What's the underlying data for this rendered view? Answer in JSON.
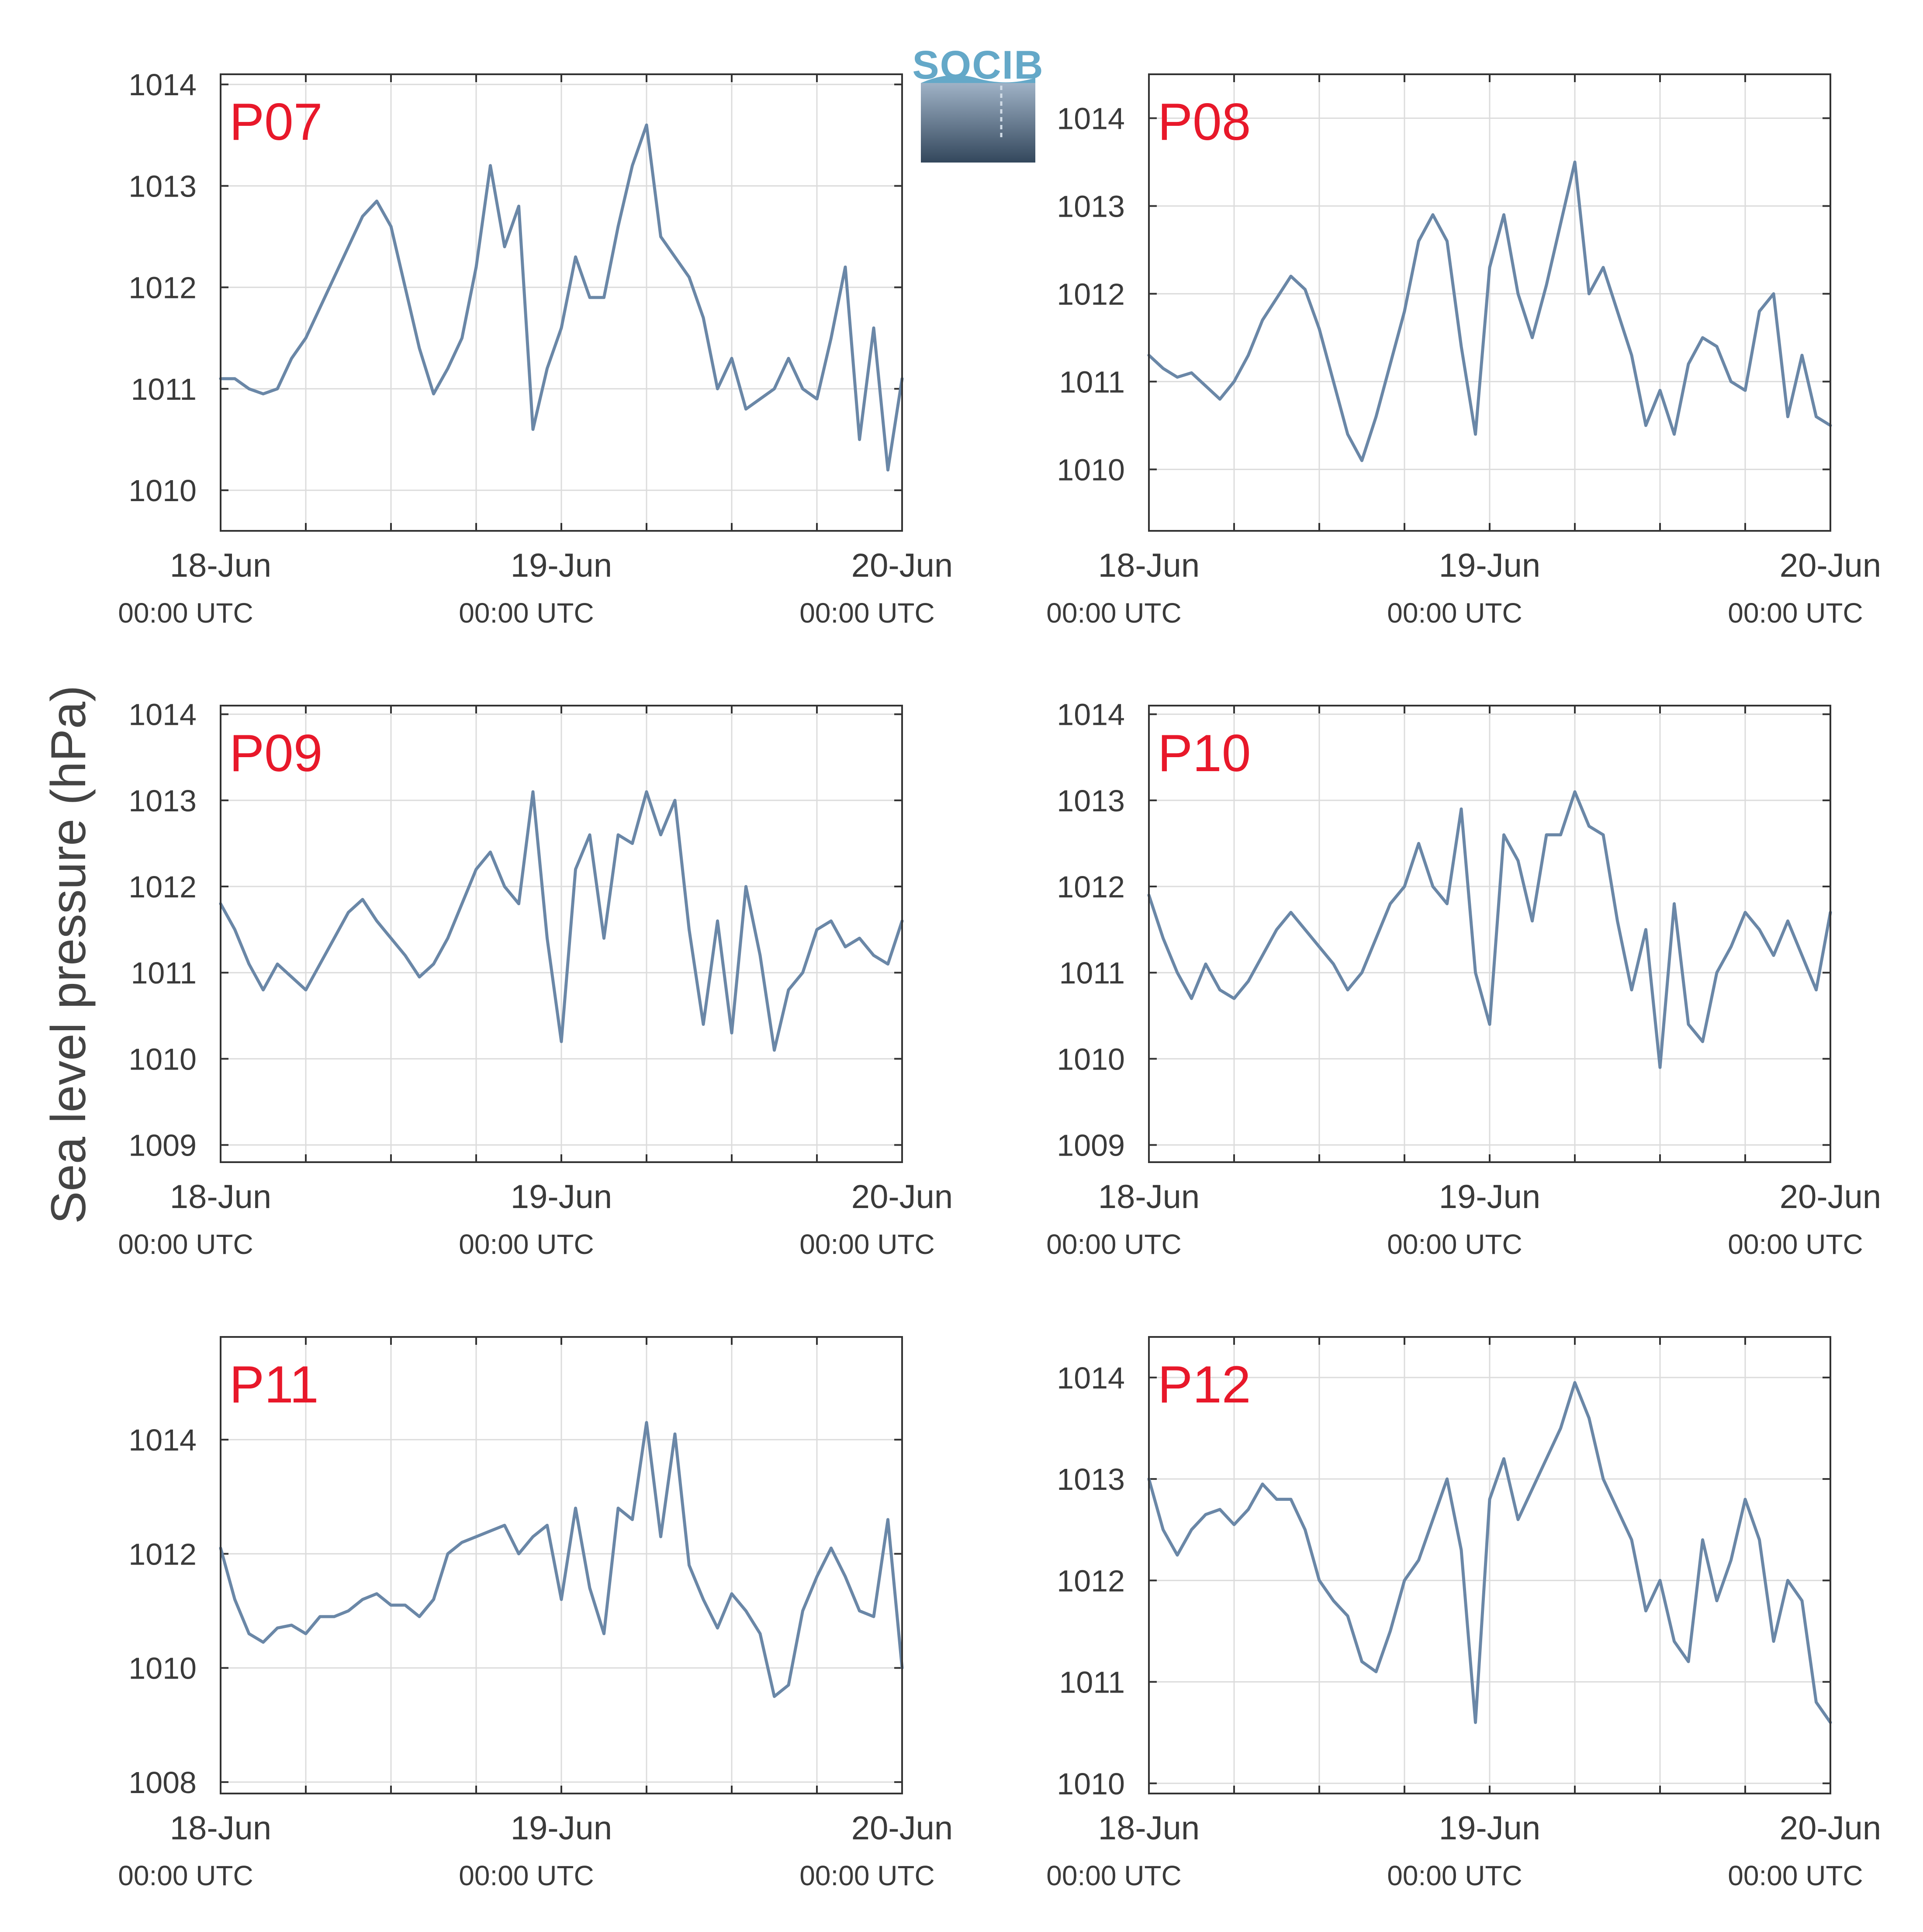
{
  "ylabel": "Sea level pressure (hPa)",
  "logo": {
    "text": "SOCIB"
  },
  "colors": {
    "line": "#6a87a7",
    "label": "#e8182a",
    "grid": "#dcdcdc",
    "axis": "#333333"
  },
  "x_ticks": [
    {
      "date": "18-Jun",
      "time": "00:00 UTC"
    },
    {
      "date": "19-Jun",
      "time": "00:00 UTC"
    },
    {
      "date": "20-Jun",
      "time": "00:00 UTC"
    }
  ],
  "chart_data": [
    {
      "type": "line",
      "panel": "P07",
      "xlim": [
        0,
        48
      ],
      "ylim": [
        1009.6,
        1014.1
      ],
      "yticks": [
        1010,
        1011,
        1012,
        1013,
        1014
      ],
      "x": [
        0,
        1,
        2,
        3,
        4,
        5,
        6,
        7,
        8,
        9,
        10,
        11,
        12,
        13,
        14,
        15,
        16,
        17,
        18,
        19,
        20,
        21,
        22,
        23,
        24,
        25,
        26,
        27,
        28,
        29,
        30,
        31,
        32,
        33,
        34,
        35,
        36,
        37,
        38,
        39,
        40,
        41,
        42,
        43,
        44,
        45,
        46,
        47,
        48
      ],
      "y": [
        1011.1,
        1011.1,
        1011.0,
        1010.95,
        1011.0,
        1011.3,
        1011.5,
        1011.8,
        1012.1,
        1012.4,
        1012.7,
        1012.85,
        1012.6,
        1012.0,
        1011.4,
        1010.95,
        1011.2,
        1011.5,
        1012.2,
        1013.2,
        1012.4,
        1012.8,
        1010.6,
        1011.2,
        1011.6,
        1012.3,
        1011.9,
        1011.9,
        1012.6,
        1013.2,
        1013.6,
        1012.5,
        1012.3,
        1012.1,
        1011.7,
        1011.0,
        1011.3,
        1010.8,
        1010.9,
        1011.0,
        1011.3,
        1011.0,
        1010.9,
        1011.5,
        1012.2,
        1010.5,
        1011.6,
        1010.2,
        1011.1
      ]
    },
    {
      "type": "line",
      "panel": "P08",
      "xlim": [
        0,
        48
      ],
      "ylim": [
        1009.3,
        1014.5
      ],
      "yticks": [
        1010,
        1011,
        1012,
        1013,
        1014
      ],
      "x": [
        0,
        1,
        2,
        3,
        4,
        5,
        6,
        7,
        8,
        9,
        10,
        11,
        12,
        13,
        14,
        15,
        16,
        17,
        18,
        19,
        20,
        21,
        22,
        23,
        24,
        25,
        26,
        27,
        28,
        29,
        30,
        31,
        32,
        33,
        34,
        35,
        36,
        37,
        38,
        39,
        40,
        41,
        42,
        43,
        44,
        45,
        46,
        47,
        48
      ],
      "y": [
        1011.3,
        1011.15,
        1011.05,
        1011.1,
        1010.95,
        1010.8,
        1011.0,
        1011.3,
        1011.7,
        1011.95,
        1012.2,
        1012.05,
        1011.6,
        1011.0,
        1010.4,
        1010.1,
        1010.6,
        1011.2,
        1011.8,
        1012.6,
        1012.9,
        1012.6,
        1011.4,
        1010.4,
        1012.3,
        1012.9,
        1012.0,
        1011.5,
        1012.1,
        1012.8,
        1013.5,
        1012.0,
        1012.3,
        1011.8,
        1011.3,
        1010.5,
        1010.9,
        1010.4,
        1011.2,
        1011.5,
        1011.4,
        1011.0,
        1010.9,
        1011.8,
        1012.0,
        1010.6,
        1011.3,
        1010.6,
        1010.5
      ]
    },
    {
      "type": "line",
      "panel": "P09",
      "xlim": [
        0,
        48
      ],
      "ylim": [
        1008.8,
        1014.1
      ],
      "yticks": [
        1009,
        1010,
        1011,
        1012,
        1013,
        1014
      ],
      "x": [
        0,
        1,
        2,
        3,
        4,
        5,
        6,
        7,
        8,
        9,
        10,
        11,
        12,
        13,
        14,
        15,
        16,
        17,
        18,
        19,
        20,
        21,
        22,
        23,
        24,
        25,
        26,
        27,
        28,
        29,
        30,
        31,
        32,
        33,
        34,
        35,
        36,
        37,
        38,
        39,
        40,
        41,
        42,
        43,
        44,
        45,
        46,
        47,
        48
      ],
      "y": [
        1011.8,
        1011.5,
        1011.1,
        1010.8,
        1011.1,
        1010.95,
        1010.8,
        1011.1,
        1011.4,
        1011.7,
        1011.85,
        1011.6,
        1011.4,
        1011.2,
        1010.95,
        1011.1,
        1011.4,
        1011.8,
        1012.2,
        1012.4,
        1012.0,
        1011.8,
        1013.1,
        1011.4,
        1010.2,
        1012.2,
        1012.6,
        1011.4,
        1012.6,
        1012.5,
        1013.1,
        1012.6,
        1013.0,
        1011.5,
        1010.4,
        1011.6,
        1010.3,
        1012.0,
        1011.2,
        1010.1,
        1010.8,
        1011.0,
        1011.5,
        1011.6,
        1011.3,
        1011.4,
        1011.2,
        1011.1,
        1011.6
      ]
    },
    {
      "type": "line",
      "panel": "P10",
      "xlim": [
        0,
        48
      ],
      "ylim": [
        1008.8,
        1014.1
      ],
      "yticks": [
        1009,
        1010,
        1011,
        1012,
        1013,
        1014
      ],
      "x": [
        0,
        1,
        2,
        3,
        4,
        5,
        6,
        7,
        8,
        9,
        10,
        11,
        12,
        13,
        14,
        15,
        16,
        17,
        18,
        19,
        20,
        21,
        22,
        23,
        24,
        25,
        26,
        27,
        28,
        29,
        30,
        31,
        32,
        33,
        34,
        35,
        36,
        37,
        38,
        39,
        40,
        41,
        42,
        43,
        44,
        45,
        46,
        47,
        48
      ],
      "y": [
        1011.9,
        1011.4,
        1011.0,
        1010.7,
        1011.1,
        1010.8,
        1010.7,
        1010.9,
        1011.2,
        1011.5,
        1011.7,
        1011.5,
        1011.3,
        1011.1,
        1010.8,
        1011.0,
        1011.4,
        1011.8,
        1012.0,
        1012.5,
        1012.0,
        1011.8,
        1012.9,
        1011.0,
        1010.4,
        1012.6,
        1012.3,
        1011.6,
        1012.6,
        1012.6,
        1013.1,
        1012.7,
        1012.6,
        1011.6,
        1010.8,
        1011.5,
        1009.9,
        1011.8,
        1010.4,
        1010.2,
        1011.0,
        1011.3,
        1011.7,
        1011.5,
        1011.2,
        1011.6,
        1011.2,
        1010.8,
        1011.7
      ]
    },
    {
      "type": "line",
      "panel": "P11",
      "xlim": [
        0,
        48
      ],
      "ylim": [
        1007.8,
        1015.8
      ],
      "yticks": [
        1008,
        1010,
        1012,
        1014
      ],
      "x": [
        0,
        1,
        2,
        3,
        4,
        5,
        6,
        7,
        8,
        9,
        10,
        11,
        12,
        13,
        14,
        15,
        16,
        17,
        18,
        19,
        20,
        21,
        22,
        23,
        24,
        25,
        26,
        27,
        28,
        29,
        30,
        31,
        32,
        33,
        34,
        35,
        36,
        37,
        38,
        39,
        40,
        41,
        42,
        43,
        44,
        45,
        46,
        47,
        48
      ],
      "y": [
        1012.1,
        1011.2,
        1010.6,
        1010.45,
        1010.7,
        1010.75,
        1010.6,
        1010.9,
        1010.9,
        1011.0,
        1011.2,
        1011.3,
        1011.1,
        1011.1,
        1010.9,
        1011.2,
        1012.0,
        1012.2,
        1012.3,
        1012.4,
        1012.5,
        1012.0,
        1012.3,
        1012.5,
        1011.2,
        1012.8,
        1011.4,
        1010.6,
        1012.8,
        1012.6,
        1014.3,
        1012.3,
        1014.1,
        1011.8,
        1011.2,
        1010.7,
        1011.3,
        1011.0,
        1010.6,
        1009.5,
        1009.7,
        1011.0,
        1011.6,
        1012.1,
        1011.6,
        1011.0,
        1010.9,
        1012.6,
        1010.0
      ]
    },
    {
      "type": "line",
      "panel": "P12",
      "xlim": [
        0,
        48
      ],
      "ylim": [
        1009.9,
        1014.4
      ],
      "yticks": [
        1010,
        1011,
        1012,
        1013,
        1014
      ],
      "x": [
        0,
        1,
        2,
        3,
        4,
        5,
        6,
        7,
        8,
        9,
        10,
        11,
        12,
        13,
        14,
        15,
        16,
        17,
        18,
        19,
        20,
        21,
        22,
        23,
        24,
        25,
        26,
        27,
        28,
        29,
        30,
        31,
        32,
        33,
        34,
        35,
        36,
        37,
        38,
        39,
        40,
        41,
        42,
        43,
        44,
        45,
        46,
        47,
        48
      ],
      "y": [
        1013.0,
        1012.5,
        1012.25,
        1012.5,
        1012.65,
        1012.7,
        1012.55,
        1012.7,
        1012.95,
        1012.8,
        1012.8,
        1012.5,
        1012.0,
        1011.8,
        1011.65,
        1011.2,
        1011.1,
        1011.5,
        1012.0,
        1012.2,
        1012.6,
        1013.0,
        1012.3,
        1010.6,
        1012.8,
        1013.2,
        1012.6,
        1012.9,
        1013.2,
        1013.5,
        1013.95,
        1013.6,
        1013.0,
        1012.7,
        1012.4,
        1011.7,
        1012.0,
        1011.4,
        1011.2,
        1012.4,
        1011.8,
        1012.2,
        1012.8,
        1012.4,
        1011.4,
        1012.0,
        1011.8,
        1010.8,
        1010.6
      ]
    }
  ]
}
